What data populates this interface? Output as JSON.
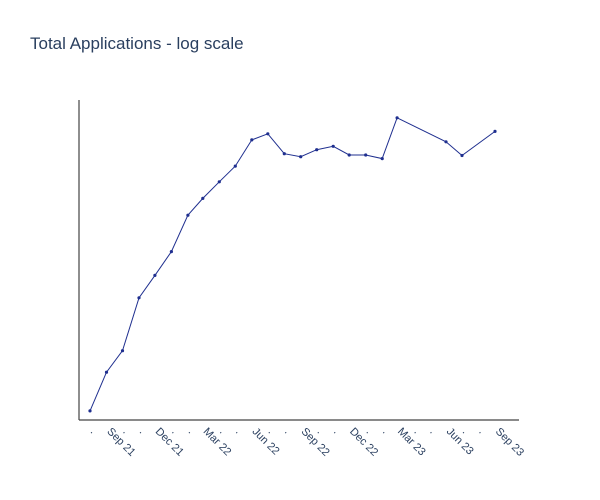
{
  "chart_data": {
    "type": "line",
    "title": "Total Applications - log scale",
    "xlabel": "",
    "ylabel": "",
    "y_scale": "log",
    "grid": false,
    "series": [
      {
        "color": "#1f2f8f",
        "points": [
          {
            "x": "2021-07-31",
            "y": 1.2
          },
          {
            "x": "2021-08-31",
            "y": 2.6
          },
          {
            "x": "2021-09-30",
            "y": 4.0
          },
          {
            "x": "2021-10-31",
            "y": 11.5
          },
          {
            "x": "2021-11-30",
            "y": 18.0
          },
          {
            "x": "2021-12-31",
            "y": 29.0
          },
          {
            "x": "2022-01-31",
            "y": 60.0
          },
          {
            "x": "2022-02-28",
            "y": 84.0
          },
          {
            "x": "2022-03-31",
            "y": 117.0
          },
          {
            "x": "2022-04-30",
            "y": 160.0
          },
          {
            "x": "2022-05-31",
            "y": 270.0
          },
          {
            "x": "2022-06-30",
            "y": 305.0
          },
          {
            "x": "2022-07-31",
            "y": 205.0
          },
          {
            "x": "2022-08-31",
            "y": 193.0
          },
          {
            "x": "2022-09-30",
            "y": 222.0
          },
          {
            "x": "2022-10-31",
            "y": 238.0
          },
          {
            "x": "2022-11-30",
            "y": 200.0
          },
          {
            "x": "2022-12-31",
            "y": 200.0
          },
          {
            "x": "2023-01-31",
            "y": 186.0
          },
          {
            "x": "2023-02-28",
            "y": 420.0
          },
          {
            "x": "2023-05-31",
            "y": 260.0
          },
          {
            "x": "2023-06-30",
            "y": 198.0
          },
          {
            "x": "2023-08-31",
            "y": 320.0
          }
        ]
      }
    ],
    "x_ticks": [
      {
        "date": "2021-07-31",
        "label": "."
      },
      {
        "date": "2021-08-31",
        "label": "Sep 21"
      },
      {
        "date": "2021-09-30",
        "label": "."
      },
      {
        "date": "2021-10-31",
        "label": "."
      },
      {
        "date": "2021-11-30",
        "label": "Dec 21"
      },
      {
        "date": "2021-12-31",
        "label": "."
      },
      {
        "date": "2022-01-31",
        "label": "."
      },
      {
        "date": "2022-02-28",
        "label": "Mar 22"
      },
      {
        "date": "2022-03-31",
        "label": "."
      },
      {
        "date": "2022-04-30",
        "label": "."
      },
      {
        "date": "2022-05-31",
        "label": "Jun 22"
      },
      {
        "date": "2022-06-30",
        "label": "."
      },
      {
        "date": "2022-07-31",
        "label": "."
      },
      {
        "date": "2022-08-31",
        "label": "Sep 22"
      },
      {
        "date": "2022-09-30",
        "label": "."
      },
      {
        "date": "2022-10-31",
        "label": "."
      },
      {
        "date": "2022-11-30",
        "label": "Dec 22"
      },
      {
        "date": "2022-12-31",
        "label": "."
      },
      {
        "date": "2023-01-31",
        "label": "."
      },
      {
        "date": "2023-02-28",
        "label": "Mar 23"
      },
      {
        "date": "2023-03-31",
        "label": "."
      },
      {
        "date": "2023-04-30",
        "label": "."
      },
      {
        "date": "2023-05-31",
        "label": "Jun 23"
      },
      {
        "date": "2023-06-30",
        "label": "."
      },
      {
        "date": "2023-07-31",
        "label": "."
      },
      {
        "date": "2023-08-31",
        "label": "Sep 23"
      }
    ],
    "ylim": [
      1,
      600
    ]
  }
}
